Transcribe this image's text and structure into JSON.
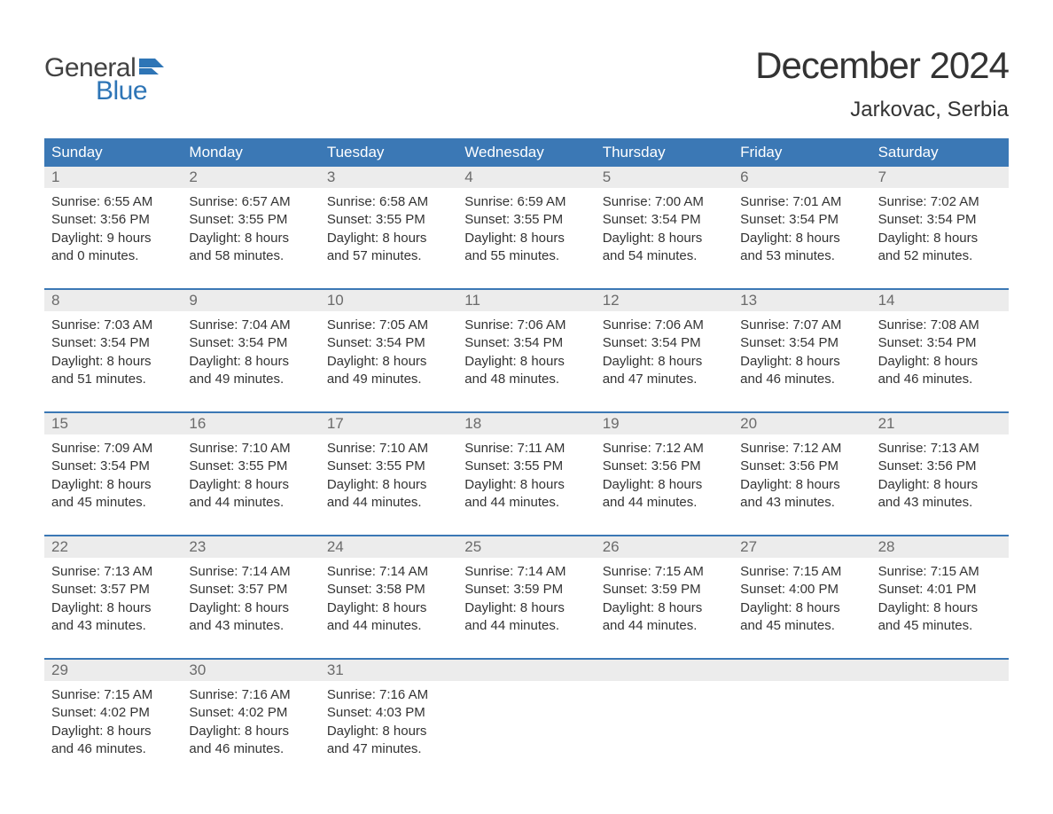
{
  "logo": {
    "word1": "General",
    "word2": "Blue",
    "word1_color": "#424242",
    "word2_color": "#2e75b6",
    "flag_color": "#2e75b6"
  },
  "header": {
    "month_title": "December 2024",
    "location": "Jarkovac, Serbia"
  },
  "colors": {
    "header_bg": "#3b78b5",
    "daynum_bg": "#ececec",
    "daynum_text": "#6b6b6b",
    "week_border": "#3b78b5",
    "body_text": "#333333"
  },
  "fonts": {
    "title_size_pt": 32,
    "location_size_pt": 18,
    "weekday_size_pt": 13,
    "daynum_size_pt": 13,
    "body_size_pt": 11
  },
  "weekdays": [
    "Sunday",
    "Monday",
    "Tuesday",
    "Wednesday",
    "Thursday",
    "Friday",
    "Saturday"
  ],
  "labels": {
    "sunrise": "Sunrise:",
    "sunset": "Sunset:",
    "daylight": "Daylight:"
  },
  "days": [
    {
      "n": 1,
      "sunrise": "6:55 AM",
      "sunset": "3:56 PM",
      "day_h": 9,
      "day_m": 0
    },
    {
      "n": 2,
      "sunrise": "6:57 AM",
      "sunset": "3:55 PM",
      "day_h": 8,
      "day_m": 58
    },
    {
      "n": 3,
      "sunrise": "6:58 AM",
      "sunset": "3:55 PM",
      "day_h": 8,
      "day_m": 57
    },
    {
      "n": 4,
      "sunrise": "6:59 AM",
      "sunset": "3:55 PM",
      "day_h": 8,
      "day_m": 55
    },
    {
      "n": 5,
      "sunrise": "7:00 AM",
      "sunset": "3:54 PM",
      "day_h": 8,
      "day_m": 54
    },
    {
      "n": 6,
      "sunrise": "7:01 AM",
      "sunset": "3:54 PM",
      "day_h": 8,
      "day_m": 53
    },
    {
      "n": 7,
      "sunrise": "7:02 AM",
      "sunset": "3:54 PM",
      "day_h": 8,
      "day_m": 52
    },
    {
      "n": 8,
      "sunrise": "7:03 AM",
      "sunset": "3:54 PM",
      "day_h": 8,
      "day_m": 51
    },
    {
      "n": 9,
      "sunrise": "7:04 AM",
      "sunset": "3:54 PM",
      "day_h": 8,
      "day_m": 49
    },
    {
      "n": 10,
      "sunrise": "7:05 AM",
      "sunset": "3:54 PM",
      "day_h": 8,
      "day_m": 49
    },
    {
      "n": 11,
      "sunrise": "7:06 AM",
      "sunset": "3:54 PM",
      "day_h": 8,
      "day_m": 48
    },
    {
      "n": 12,
      "sunrise": "7:06 AM",
      "sunset": "3:54 PM",
      "day_h": 8,
      "day_m": 47
    },
    {
      "n": 13,
      "sunrise": "7:07 AM",
      "sunset": "3:54 PM",
      "day_h": 8,
      "day_m": 46
    },
    {
      "n": 14,
      "sunrise": "7:08 AM",
      "sunset": "3:54 PM",
      "day_h": 8,
      "day_m": 46
    },
    {
      "n": 15,
      "sunrise": "7:09 AM",
      "sunset": "3:54 PM",
      "day_h": 8,
      "day_m": 45
    },
    {
      "n": 16,
      "sunrise": "7:10 AM",
      "sunset": "3:55 PM",
      "day_h": 8,
      "day_m": 44
    },
    {
      "n": 17,
      "sunrise": "7:10 AM",
      "sunset": "3:55 PM",
      "day_h": 8,
      "day_m": 44
    },
    {
      "n": 18,
      "sunrise": "7:11 AM",
      "sunset": "3:55 PM",
      "day_h": 8,
      "day_m": 44
    },
    {
      "n": 19,
      "sunrise": "7:12 AM",
      "sunset": "3:56 PM",
      "day_h": 8,
      "day_m": 44
    },
    {
      "n": 20,
      "sunrise": "7:12 AM",
      "sunset": "3:56 PM",
      "day_h": 8,
      "day_m": 43
    },
    {
      "n": 21,
      "sunrise": "7:13 AM",
      "sunset": "3:56 PM",
      "day_h": 8,
      "day_m": 43
    },
    {
      "n": 22,
      "sunrise": "7:13 AM",
      "sunset": "3:57 PM",
      "day_h": 8,
      "day_m": 43
    },
    {
      "n": 23,
      "sunrise": "7:14 AM",
      "sunset": "3:57 PM",
      "day_h": 8,
      "day_m": 43
    },
    {
      "n": 24,
      "sunrise": "7:14 AM",
      "sunset": "3:58 PM",
      "day_h": 8,
      "day_m": 44
    },
    {
      "n": 25,
      "sunrise": "7:14 AM",
      "sunset": "3:59 PM",
      "day_h": 8,
      "day_m": 44
    },
    {
      "n": 26,
      "sunrise": "7:15 AM",
      "sunset": "3:59 PM",
      "day_h": 8,
      "day_m": 44
    },
    {
      "n": 27,
      "sunrise": "7:15 AM",
      "sunset": "4:00 PM",
      "day_h": 8,
      "day_m": 45
    },
    {
      "n": 28,
      "sunrise": "7:15 AM",
      "sunset": "4:01 PM",
      "day_h": 8,
      "day_m": 45
    },
    {
      "n": 29,
      "sunrise": "7:15 AM",
      "sunset": "4:02 PM",
      "day_h": 8,
      "day_m": 46
    },
    {
      "n": 30,
      "sunrise": "7:16 AM",
      "sunset": "4:02 PM",
      "day_h": 8,
      "day_m": 46
    },
    {
      "n": 31,
      "sunrise": "7:16 AM",
      "sunset": "4:03 PM",
      "day_h": 8,
      "day_m": 47
    }
  ],
  "first_weekday_index": 0,
  "trailing_blanks": 4
}
